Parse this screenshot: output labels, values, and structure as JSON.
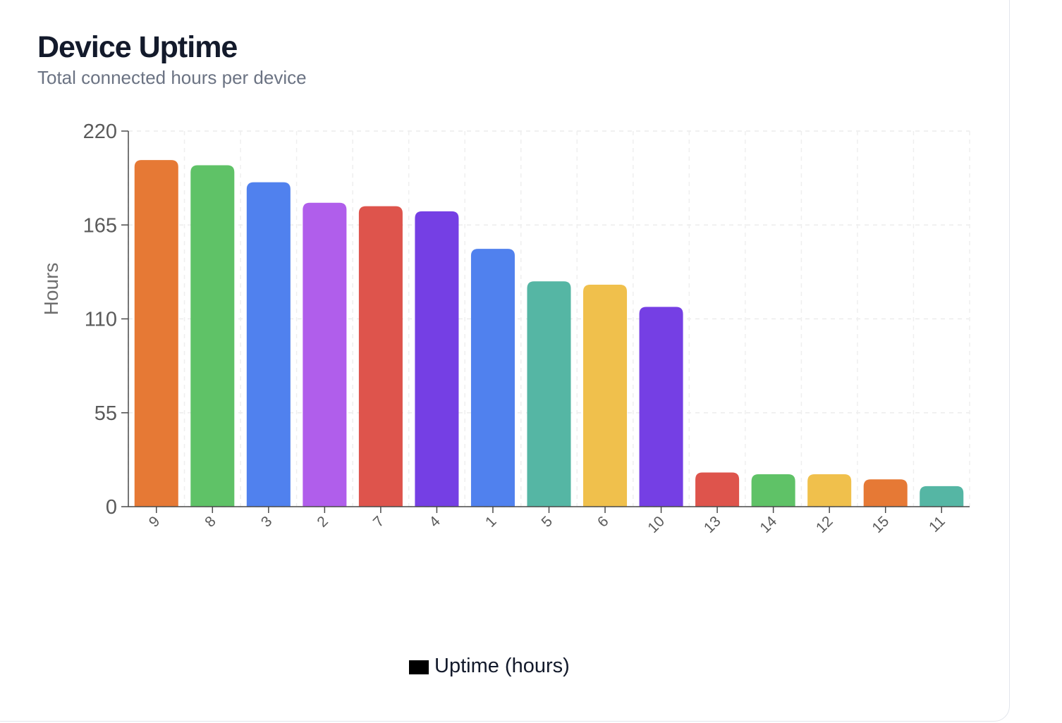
{
  "header": {
    "title": "Device Uptime",
    "subtitle": "Total connected hours per device"
  },
  "legend": {
    "label": "Uptime (hours)",
    "swatch_color": "#000000"
  },
  "chart_data": {
    "type": "bar",
    "title": "Device Uptime",
    "subtitle": "Total connected hours per device",
    "xlabel": "",
    "ylabel": "Hours",
    "ylim": [
      0,
      220
    ],
    "yticks": [
      0,
      55,
      110,
      165,
      220
    ],
    "grid": true,
    "legend_position": "bottom",
    "categories": [
      "9",
      "8",
      "3",
      "2",
      "7",
      "4",
      "1",
      "5",
      "6",
      "10",
      "13",
      "14",
      "12",
      "15",
      "11"
    ],
    "series": [
      {
        "name": "Uptime (hours)",
        "values": [
          203,
          200,
          190,
          178,
          176,
          173,
          151,
          132,
          130,
          117,
          20,
          19,
          19,
          16,
          12
        ]
      }
    ],
    "colors": [
      "#e67935",
      "#5fc267",
      "#5081ee",
      "#b05eeb",
      "#de544c",
      "#753fe4",
      "#5081ee",
      "#55b6a4",
      "#f0c04c",
      "#753fe4",
      "#de544c",
      "#5fc267",
      "#f0c04c",
      "#e67935",
      "#55b6a4"
    ]
  }
}
